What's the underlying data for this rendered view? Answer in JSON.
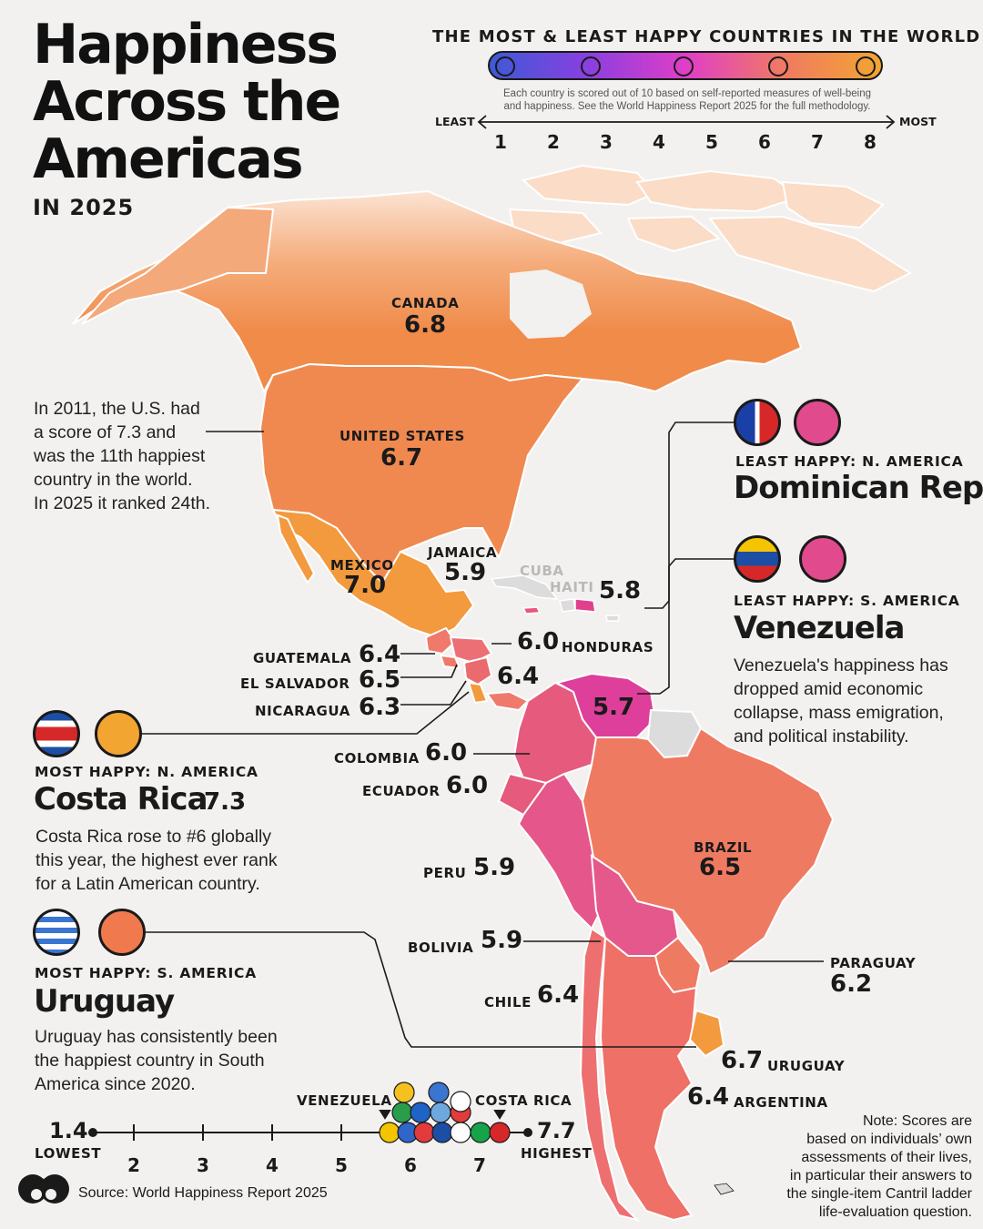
{
  "title": {
    "line1": "Happiness",
    "line2": "Across the",
    "line3": "Americas",
    "subtitle": "IN 2025"
  },
  "legend": {
    "heading": "THE MOST & LEAST HAPPY COUNTRIES IN THE WORLD",
    "note_line1": "Each country is scored out of 10 based on self-reported measures of well-being",
    "note_line2": "and happiness. See the World Happiness Report 2025 for the full methodology.",
    "least": "LEAST",
    "most": "MOST",
    "scale": [
      "1",
      "2",
      "3",
      "4",
      "5",
      "6",
      "7",
      "8"
    ],
    "gradient_colors": [
      "#3d5ad6",
      "#8a3fe0",
      "#e03ec8",
      "#f07a62",
      "#f3a531"
    ],
    "faces": [
      "very-sad-face-icon",
      "sad-face-icon",
      "neutral-face-icon",
      "smile-face-icon",
      "big-smile-face-icon"
    ]
  },
  "countries": {
    "canada": {
      "name": "CANADA",
      "score": "6.8"
    },
    "united_states": {
      "name": "UNITED STATES",
      "score": "6.7"
    },
    "mexico": {
      "name": "MEXICO",
      "score": "7.0"
    },
    "jamaica": {
      "name": "JAMAICA",
      "score": "5.9"
    },
    "cuba": {
      "name": "CUBA"
    },
    "haiti": {
      "name": "HAITI"
    },
    "dominican_rep": {
      "score": "5.8"
    },
    "guatemala": {
      "name": "GUATEMALA",
      "score": "6.4"
    },
    "el_salvador": {
      "name": "EL SALVADOR",
      "score": "6.5"
    },
    "nicaragua": {
      "name": "NICARAGUA",
      "score": "6.3"
    },
    "honduras": {
      "name": "HONDURAS",
      "score": "6.0"
    },
    "panama": {
      "score": "6.4"
    },
    "venezuela": {
      "score": "5.7"
    },
    "colombia": {
      "name": "COLOMBIA",
      "score": "6.0"
    },
    "ecuador": {
      "name": "ECUADOR",
      "score": "6.0"
    },
    "peru": {
      "name": "PERU",
      "score": "5.9"
    },
    "bolivia": {
      "name": "BOLIVIA",
      "score": "5.9"
    },
    "chile": {
      "name": "CHILE",
      "score": "6.4"
    },
    "brazil": {
      "name": "BRAZIL",
      "score": "6.5"
    },
    "paraguay": {
      "name": "PARAGUAY",
      "score": "6.2"
    },
    "uruguay": {
      "name": "URUGUAY",
      "score": "6.7"
    },
    "argentina": {
      "name": "ARGENTINA",
      "score": "6.4"
    }
  },
  "us_note": {
    "line1": "In 2011, the U.S. had",
    "line2": "a score of 7.3 and",
    "line3": "was the 11th happiest",
    "line4": "country in the world.",
    "line5": "In 2025 it ranked 24th."
  },
  "callouts": {
    "least_na": {
      "label": "LEAST HAPPY: N. AMERICA",
      "country": "Dominican Rep.",
      "flag_icon": "dominican-republic-flag-icon"
    },
    "least_sa": {
      "label": "LEAST HAPPY: S. AMERICA",
      "country": "Venezuela",
      "flag_icon": "venezuela-flag-icon",
      "text_line1": "Venezuela's happiness has",
      "text_line2": "dropped amid economic",
      "text_line3": "collapse, mass emigration,",
      "text_line4": "and political instability."
    },
    "most_na": {
      "label": "MOST HAPPY: N. AMERICA",
      "country": "Costa Rica",
      "score": "7.3",
      "flag_icon": "costa-rica-flag-icon",
      "text_line1": "Costa Rica rose to #6 globally",
      "text_line2": "this year, the highest ever rank",
      "text_line3": "for a Latin American country."
    },
    "most_sa": {
      "label": "MOST HAPPY: S. AMERICA",
      "country": "Uruguay",
      "flag_icon": "uruguay-flag-icon",
      "text_line1": "Uruguay has consistently been",
      "text_line2": "the happiest country in South",
      "text_line3": "America since 2020."
    }
  },
  "bottom_scale": {
    "lowest_value": "1.4",
    "lowest_label": "LOWEST",
    "highest_value": "7.7",
    "highest_label": "HIGHEST",
    "ticks": [
      "2",
      "3",
      "4",
      "5",
      "6",
      "7"
    ],
    "marker_left": "VENEZUELA",
    "marker_right": "COSTA RICA"
  },
  "source": "Source: World Happiness Report 2025",
  "footnote": {
    "line1": "Note: Scores are",
    "line2": "based on individuals’ own",
    "line3": "assessments of their lives,",
    "line4": "in particular their answers to",
    "line5": "the single-item Cantril ladder",
    "line6": "life-evaluation question."
  },
  "colors": {
    "canada_top": "#f9d6c0",
    "canada": "#f08b4a",
    "usa": "#f0894f",
    "mexico": "#f29a3d",
    "central": "#ef7a6b",
    "pink": "#e8567e",
    "magenta": "#dd3f9a",
    "brazil": "#ef7a62",
    "argentina": "#ee7066",
    "grey_country": "#dcdcdc",
    "background": "#f2f1ef"
  }
}
